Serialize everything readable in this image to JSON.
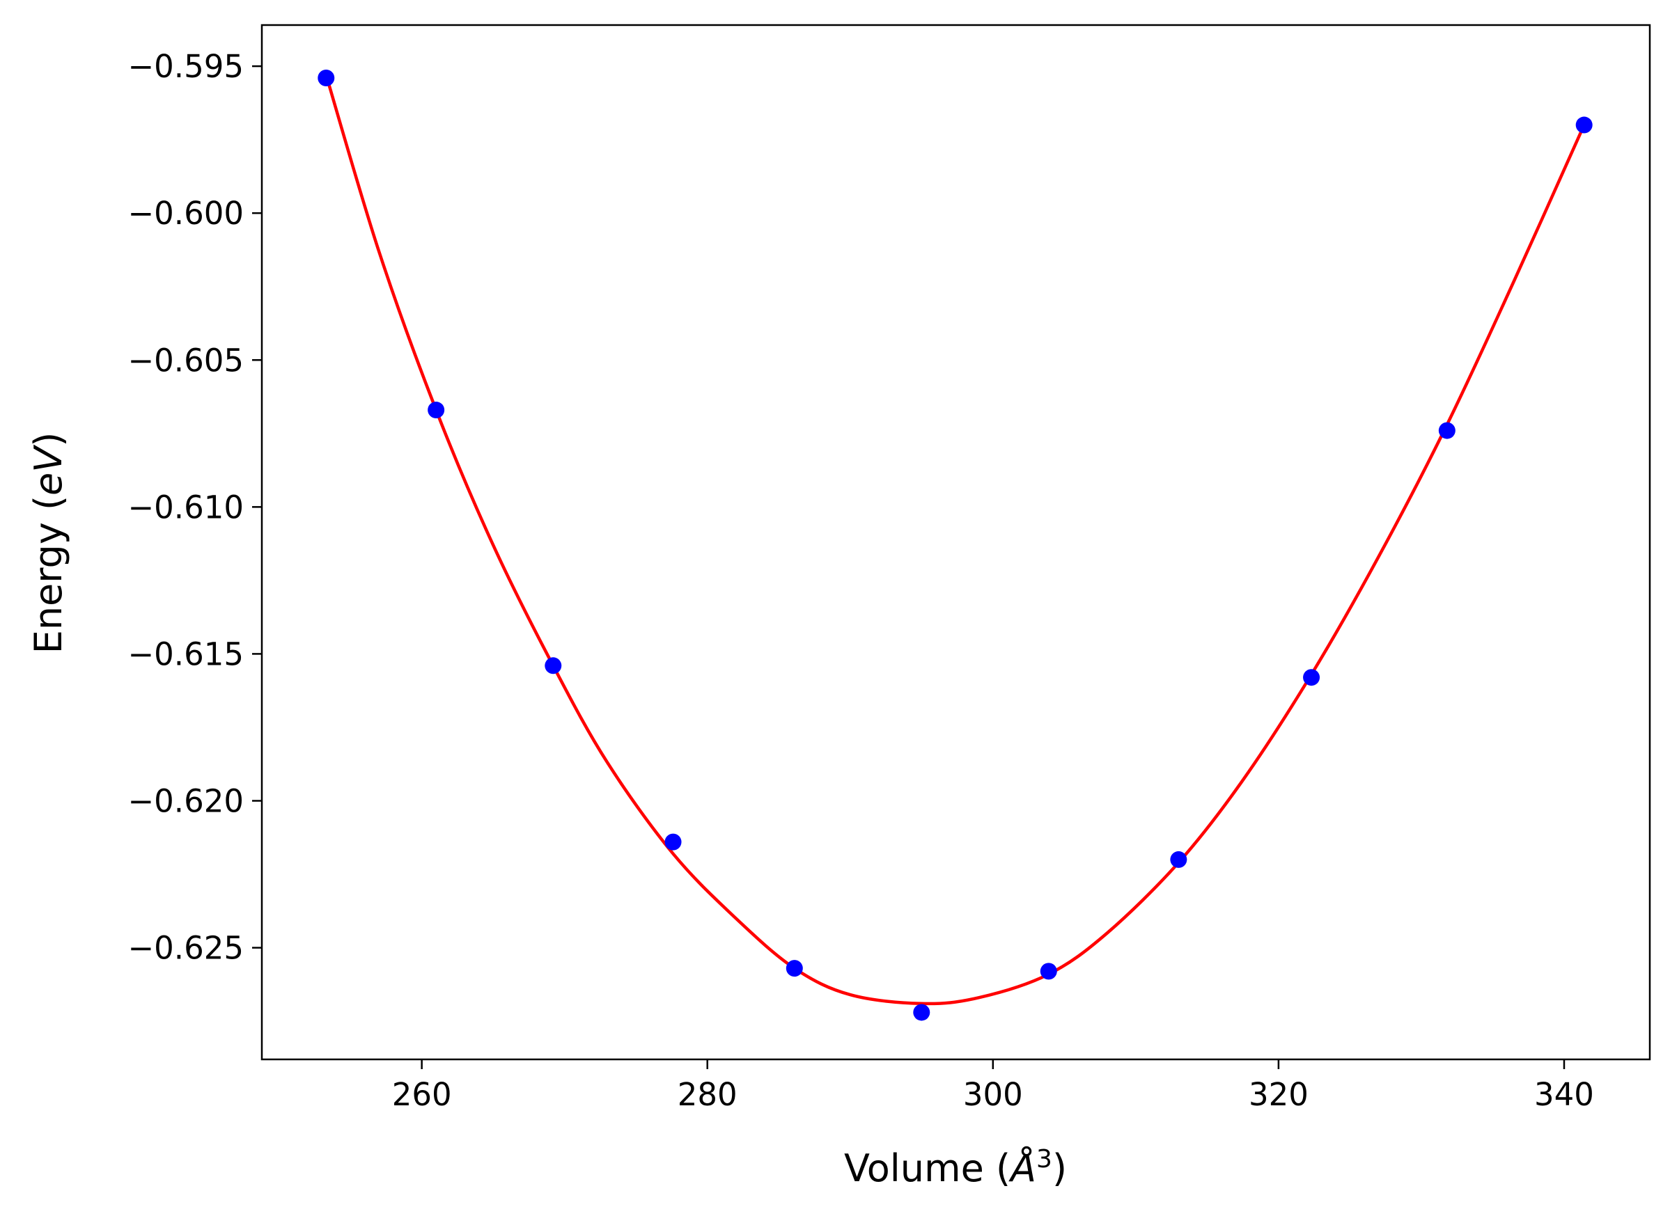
{
  "chart_data": {
    "type": "scatter",
    "title": "",
    "xlabel": "Volume",
    "xlabel_unit_open": "(",
    "xlabel_unit_symbol": "Å",
    "xlabel_unit_power": "3",
    "xlabel_unit_close": ")",
    "ylabel": "Energy",
    "ylabel_unit_open": "(",
    "ylabel_unit_symbol": "eV",
    "ylabel_unit_close": ")",
    "xlim": [
      248.8,
      346.0
    ],
    "ylim": [
      -0.6288,
      -0.5936
    ],
    "xticks": [
      260,
      280,
      300,
      320,
      340
    ],
    "xtick_labels": [
      "260",
      "280",
      "300",
      "320",
      "340"
    ],
    "yticks": [
      -0.595,
      -0.6,
      -0.605,
      -0.61,
      -0.615,
      -0.62,
      -0.625
    ],
    "ytick_labels": [
      "−0.595",
      "−0.600",
      "−0.605",
      "−0.610",
      "−0.615",
      "−0.620",
      "−0.625"
    ],
    "grid": false,
    "legend": "none",
    "series": [
      {
        "kind": "points",
        "color": "#0000ff",
        "x": [
          253.3,
          261.0,
          269.2,
          277.6,
          286.1,
          295.0,
          303.9,
          313.0,
          322.3,
          331.8,
          341.4
        ],
        "y": [
          -0.5954,
          -0.6067,
          -0.6154,
          -0.6214,
          -0.6257,
          -0.6272,
          -0.6258,
          -0.622,
          -0.6158,
          -0.6074,
          -0.597
        ]
      },
      {
        "kind": "fit-curve",
        "color": "#ff0000",
        "x": [
          253.3,
          257.0,
          261.0,
          265.0,
          269.2,
          273.0,
          277.6,
          282.0,
          286.1,
          290.0,
          295.0,
          299.0,
          303.9,
          308.0,
          313.0,
          317.5,
          322.3,
          327.0,
          331.8,
          336.5,
          341.4
        ],
        "y": [
          -0.5953,
          -0.6013,
          -0.6067,
          -0.6113,
          -0.6154,
          -0.6187,
          -0.6218,
          -0.624,
          -0.6257,
          -0.6266,
          -0.6269,
          -0.6267,
          -0.6259,
          -0.6245,
          -0.6221,
          -0.6193,
          -0.6157,
          -0.6117,
          -0.6072,
          -0.6023,
          -0.597
        ]
      }
    ]
  }
}
